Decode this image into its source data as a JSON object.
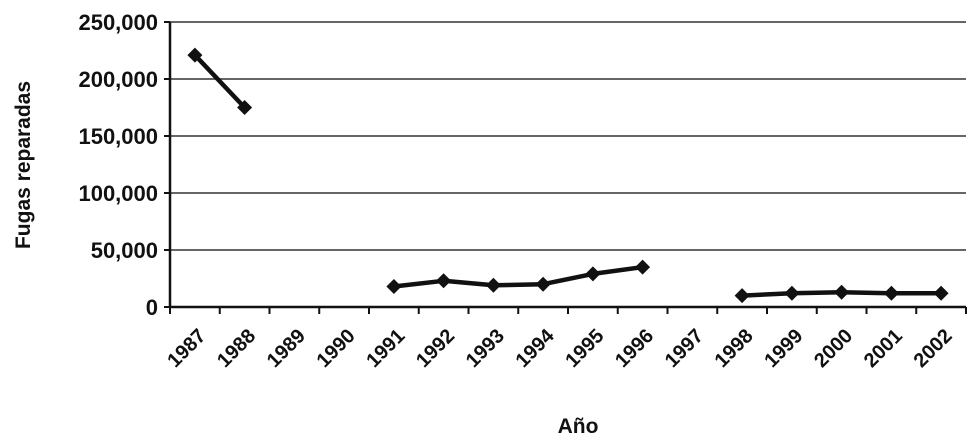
{
  "chart_data": {
    "type": "line",
    "title": "",
    "xlabel": "Año",
    "ylabel": "Fugas reparadas",
    "categories": [
      "1987",
      "1988",
      "1989",
      "1990",
      "1991",
      "1992",
      "1993",
      "1994",
      "1995",
      "1996",
      "1997",
      "1998",
      "1999",
      "2000",
      "2001",
      "2002"
    ],
    "series": [
      {
        "values": [
          221000,
          175000,
          null,
          null,
          18000,
          23000,
          19000,
          20000,
          29000,
          35000,
          null,
          10000,
          12000,
          13000,
          12000,
          12000
        ]
      }
    ],
    "ylim": [
      0,
      250000
    ],
    "yticks": [
      {
        "value": 0,
        "label": "0"
      },
      {
        "value": 50000,
        "label": "50,000"
      },
      {
        "value": 100000,
        "label": "100,000"
      },
      {
        "value": 150000,
        "label": "150,000"
      },
      {
        "value": 200000,
        "label": "200,000"
      },
      {
        "value": 250000,
        "label": "250,000"
      }
    ],
    "grid": true,
    "legend": "none",
    "line_color": "#111111",
    "grid_color": "#333333"
  }
}
